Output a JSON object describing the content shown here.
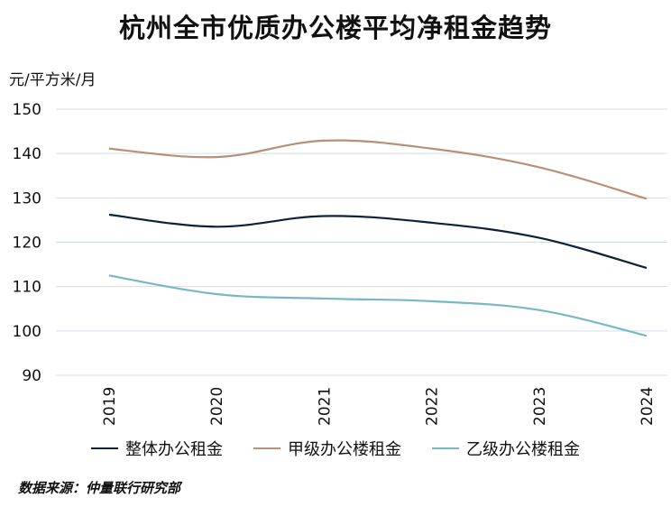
{
  "chart_data": {
    "type": "line",
    "title": "杭州全市优质办公楼平均净租金趋势",
    "ylabel": "元/平方米/月",
    "ylim": [
      90,
      150
    ],
    "yticks": [
      90,
      100,
      110,
      120,
      130,
      140,
      150
    ],
    "x": [
      "2019",
      "2020",
      "2021",
      "2022",
      "2023",
      "2024"
    ],
    "grid": true,
    "legend_position": "bottom",
    "series": [
      {
        "name": "整体办公租金",
        "color": "#0d2238",
        "values": [
          126.2,
          123.5,
          125.9,
          124.4,
          121.0,
          114.2
        ]
      },
      {
        "name": "甲级办公楼租金",
        "color": "#b89078",
        "values": [
          141.1,
          139.2,
          142.9,
          141.1,
          136.9,
          129.8
        ]
      },
      {
        "name": "乙级办公楼租金",
        "color": "#78b8c4",
        "values": [
          112.5,
          108.3,
          107.3,
          106.7,
          104.7,
          98.9
        ]
      }
    ],
    "source": "数据来源：仲量联行研究部"
  }
}
